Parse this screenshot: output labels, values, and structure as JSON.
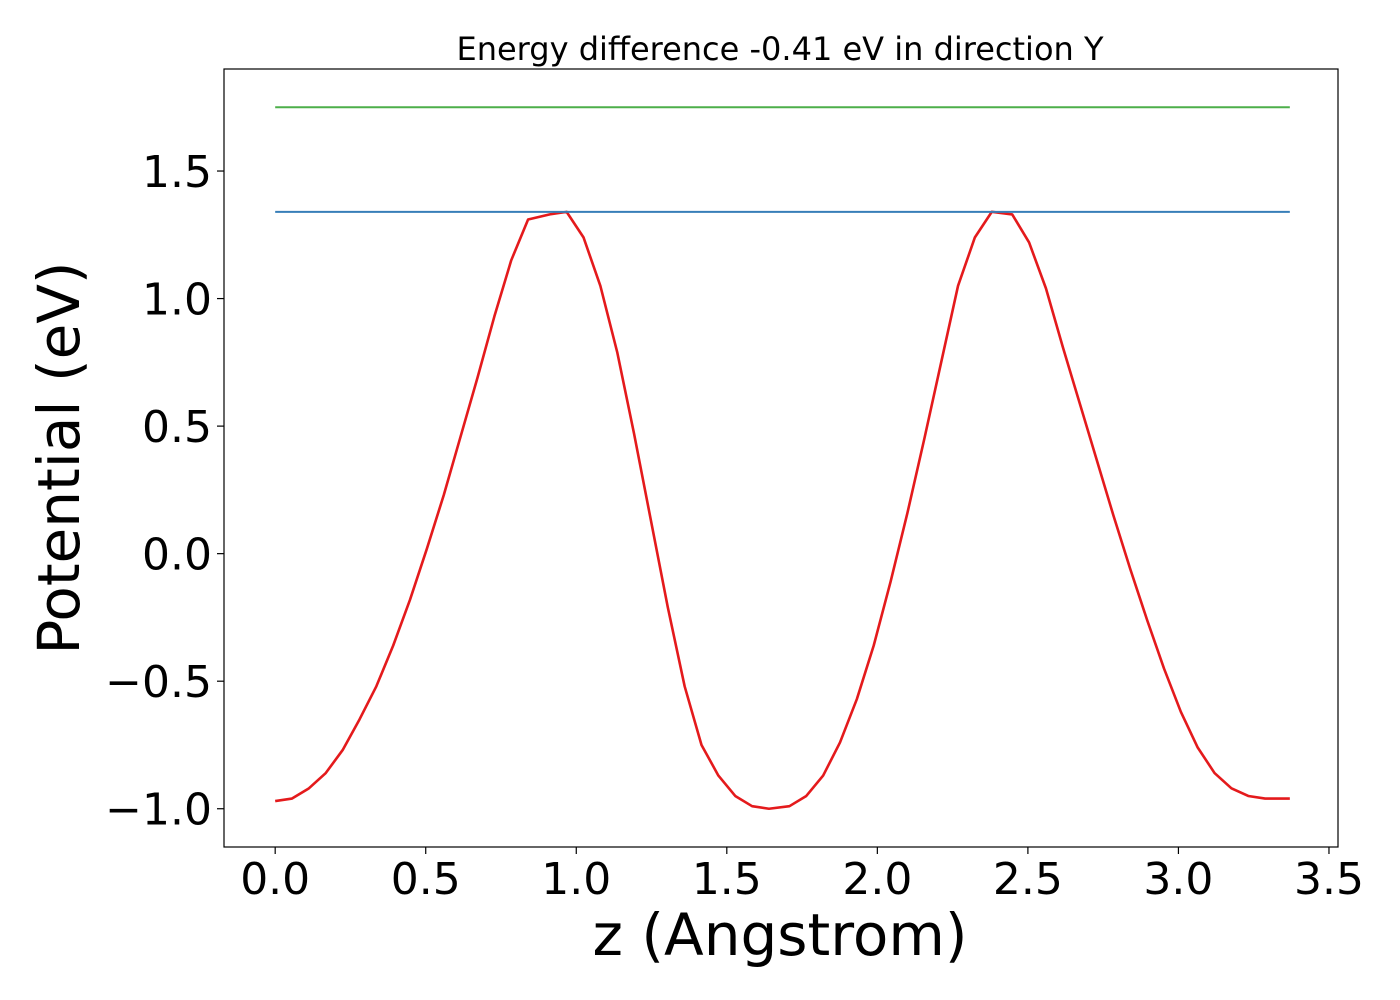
{
  "chart_data": {
    "type": "line",
    "title": "Energy difference -0.41 eV in direction Y",
    "xlabel": "z (Angstrom)",
    "ylabel": "Potential (eV)",
    "xlim": [
      -0.17,
      3.53
    ],
    "ylim": [
      -1.15,
      1.9
    ],
    "xticks": [
      0.0,
      0.5,
      1.0,
      1.5,
      2.0,
      2.5,
      3.0,
      3.5
    ],
    "xtick_labels": [
      "0.0",
      "0.5",
      "1.0",
      "1.5",
      "2.0",
      "2.5",
      "3.0",
      "3.5"
    ],
    "yticks": [
      -1.0,
      -0.5,
      0.0,
      0.5,
      1.0,
      1.5
    ],
    "ytick_labels": [
      "−1.0",
      "−0.5",
      "0.0",
      "0.5",
      "1.0",
      "1.5"
    ],
    "grid": false,
    "series": [
      {
        "color": "#e41a1c",
        "x": [
          0.0,
          0.056,
          0.112,
          0.168,
          0.224,
          0.28,
          0.336,
          0.392,
          0.448,
          0.504,
          0.56,
          0.616,
          0.672,
          0.728,
          0.784,
          0.84,
          0.912,
          0.968,
          1.024,
          1.08,
          1.136,
          1.192,
          1.248,
          1.304,
          1.36,
          1.416,
          1.472,
          1.528,
          1.584,
          1.64,
          1.708,
          1.764,
          1.82,
          1.876,
          1.932,
          1.988,
          2.044,
          2.1,
          2.156,
          2.212,
          2.268,
          2.324,
          2.38,
          2.448,
          2.504,
          2.56,
          2.616,
          2.672,
          2.728,
          2.784,
          2.84,
          2.896,
          2.952,
          3.008,
          3.064,
          3.12,
          3.176,
          3.232,
          3.288,
          3.344,
          3.37
        ],
        "values": [
          -0.97,
          -0.96,
          -0.92,
          -0.86,
          -0.77,
          -0.65,
          -0.52,
          -0.36,
          -0.18,
          0.02,
          0.23,
          0.46,
          0.69,
          0.93,
          1.15,
          1.31,
          1.33,
          1.34,
          1.24,
          1.05,
          0.79,
          0.47,
          0.13,
          -0.21,
          -0.52,
          -0.75,
          -0.87,
          -0.95,
          -0.99,
          -1.0,
          -0.99,
          -0.95,
          -0.87,
          -0.74,
          -0.57,
          -0.36,
          -0.11,
          0.16,
          0.45,
          0.75,
          1.05,
          1.24,
          1.34,
          1.33,
          1.22,
          1.04,
          0.81,
          0.59,
          0.37,
          0.15,
          -0.06,
          -0.26,
          -0.45,
          -0.62,
          -0.76,
          -0.86,
          -0.92,
          -0.95,
          -0.96,
          -0.96,
          -0.96
        ]
      },
      {
        "color": "#377eb8",
        "x": [
          0.0,
          3.37
        ],
        "values": [
          1.34,
          1.34
        ]
      },
      {
        "color": "#4daf4a",
        "x": [
          0.0,
          3.37
        ],
        "values": [
          1.75,
          1.75
        ]
      }
    ]
  }
}
